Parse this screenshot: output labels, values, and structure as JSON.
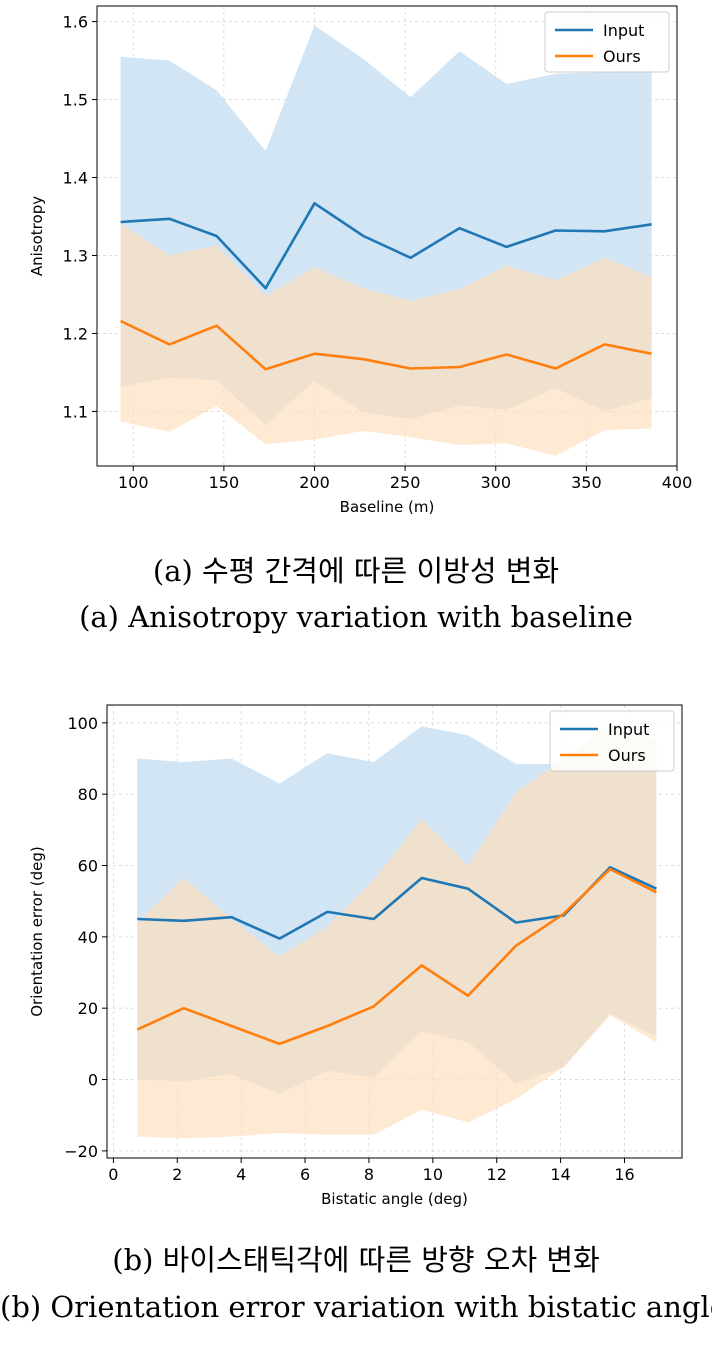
{
  "chart_data": [
    {
      "type": "line",
      "xlabel": "Baseline (m)",
      "ylabel": "Anisotropy",
      "xlim": [
        80,
        400
      ],
      "ylim": [
        1.03,
        1.62
      ],
      "xticks": [
        100,
        150,
        200,
        250,
        300,
        350,
        400
      ],
      "yticks": [
        1.1,
        1.2,
        1.3,
        1.4,
        1.5,
        1.6
      ],
      "ytick_labels": [
        "1.1",
        "1.2",
        "1.3",
        "1.4",
        "1.5",
        "1.6"
      ],
      "grid": true,
      "legend": "top-right",
      "x": [
        93,
        120,
        146,
        173,
        200,
        227,
        253,
        280,
        306,
        333,
        360,
        386
      ],
      "series": [
        {
          "name": "Input",
          "color": "#1f77b4",
          "band_color": "#c9e0f3",
          "values": [
            1.343,
            1.347,
            1.325,
            1.258,
            1.367,
            1.325,
            1.297,
            1.335,
            1.311,
            1.332,
            1.331,
            1.34
          ],
          "upper": [
            1.555,
            1.55,
            1.512,
            1.434,
            1.595,
            1.552,
            1.503,
            1.562,
            1.52,
            1.533,
            1.535,
            1.54
          ],
          "lower": [
            1.132,
            1.143,
            1.14,
            1.083,
            1.139,
            1.099,
            1.09,
            1.108,
            1.102,
            1.13,
            1.1,
            1.117
          ]
        },
        {
          "name": "Ours",
          "color": "#ff7f0e",
          "band_color": "#fde0bf",
          "values": [
            1.216,
            1.186,
            1.21,
            1.154,
            1.174,
            1.167,
            1.155,
            1.157,
            1.173,
            1.155,
            1.186,
            1.174
          ],
          "upper": [
            1.341,
            1.3,
            1.313,
            1.248,
            1.285,
            1.258,
            1.242,
            1.257,
            1.287,
            1.268,
            1.297,
            1.272
          ],
          "lower": [
            1.087,
            1.074,
            1.107,
            1.058,
            1.064,
            1.075,
            1.067,
            1.057,
            1.059,
            1.043,
            1.076,
            1.078
          ]
        }
      ]
    },
    {
      "type": "line",
      "xlabel": "Bistatic angle (deg)",
      "ylabel": "Orientation error (deg)",
      "xlim": [
        -0.2,
        17.8
      ],
      "ylim": [
        -22,
        105
      ],
      "xticks": [
        0,
        2,
        4,
        6,
        8,
        10,
        12,
        14,
        16
      ],
      "yticks": [
        -20,
        0,
        20,
        40,
        60,
        80,
        100
      ],
      "ytick_labels": [
        "−20",
        "0",
        "20",
        "40",
        "60",
        "80",
        "100"
      ],
      "grid": true,
      "legend": "top-right",
      "x": [
        0.75,
        2.2,
        3.7,
        5.2,
        6.7,
        8.15,
        9.65,
        11.1,
        12.6,
        14.1,
        15.55,
        17.0
      ],
      "series": [
        {
          "name": "Input",
          "color": "#1f77b4",
          "band_color": "#c9e0f3",
          "values": [
            45,
            44.5,
            45.5,
            39.5,
            47,
            45,
            56.5,
            53.5,
            44,
            46,
            59.5,
            53.5
          ],
          "upper": [
            90,
            89,
            90,
            83,
            91.5,
            89,
            99,
            96.5,
            88.5,
            88.5,
            100,
            95
          ],
          "lower": [
            0,
            -0.5,
            1.5,
            -4,
            2.5,
            0.5,
            13.5,
            10.5,
            -1,
            3.5,
            18.5,
            12
          ]
        },
        {
          "name": "Ours",
          "color": "#ff7f0e",
          "band_color": "#fde0bf",
          "values": [
            14,
            20,
            15,
            10,
            15,
            20.5,
            32,
            23.5,
            37.5,
            46.5,
            59,
            52.5
          ],
          "upper": [
            44,
            56.5,
            45,
            34.5,
            43,
            56,
            73,
            60,
            80.5,
            90,
            100,
            95
          ],
          "lower": [
            -16,
            -16.5,
            -16,
            -15,
            -15.5,
            -15.5,
            -8.5,
            -12,
            -5.5,
            3.5,
            18,
            10.5
          ]
        }
      ]
    }
  ],
  "captions": {
    "a_korean": "(a) 수평 간격에 따른 이방성 변화",
    "a_english": "(a) Anisotropy variation with baseline",
    "b_korean": "(b) 바이스태틱각에 따른 방향 오차 변화",
    "b_english": "(b) Orientation error variation with bistatic angle"
  }
}
